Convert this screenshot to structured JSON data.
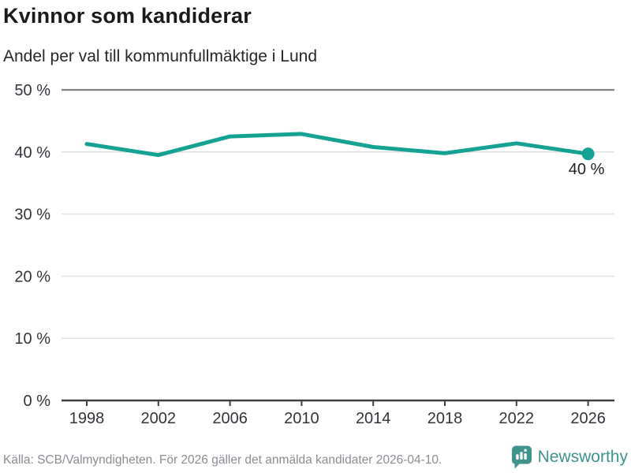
{
  "chart_data": {
    "type": "line",
    "title": "Kvinnor som kandiderar",
    "subtitle": "Andel per val till kommunfullmäktige i Lund",
    "categories": [
      "1998",
      "2002",
      "2006",
      "2010",
      "2014",
      "2018",
      "2022",
      "2026"
    ],
    "values": [
      41.3,
      39.5,
      42.5,
      42.9,
      40.8,
      39.8,
      41.4,
      39.7
    ],
    "ylim": [
      0,
      50
    ],
    "yticks": [
      0,
      10,
      20,
      30,
      40,
      50
    ],
    "ytick_suffix": " %",
    "xlabel": "",
    "ylabel": "",
    "grid": true,
    "legend_position": "none",
    "end_point_label": "40 %",
    "colors": {
      "line": "#15a295",
      "grid_light": "#e2e2e2",
      "grid_top": "#818181",
      "axis": "#3f3f3f",
      "tick_label": "#33333a",
      "annotation": "#1f1f1f"
    }
  },
  "footer": {
    "source": "Källa: SCB/Valmyndigheten. För 2026 gäller det anmälda kandidater 2026-04-10.",
    "brand": "Newsworthy",
    "brand_color": "#3e948d",
    "brand_icon": "newsworthy-speech-bubble-bar-chart"
  }
}
